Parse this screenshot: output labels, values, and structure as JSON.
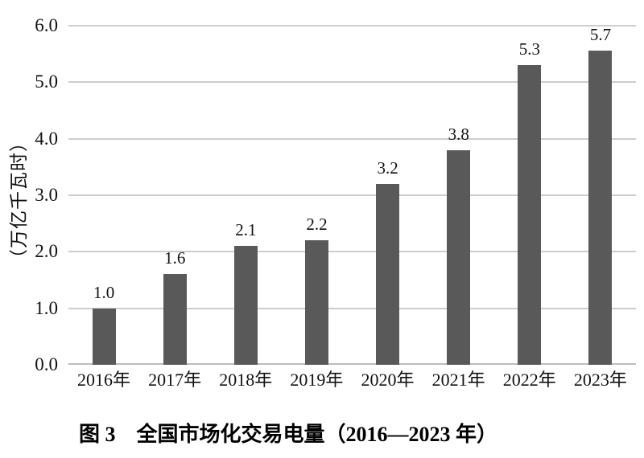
{
  "figure": {
    "caption": "图 3　全国市场化交易电量（2016—2023 年）"
  },
  "chart_data": {
    "type": "bar",
    "title": "图 3　全国市场化交易电量（2016—2023 年）",
    "categories": [
      "2016年",
      "2017年",
      "2018年",
      "2019年",
      "2020年",
      "2021年",
      "2022年",
      "2023年"
    ],
    "values": [
      1.0,
      1.6,
      2.1,
      2.2,
      3.2,
      3.8,
      5.3,
      5.7
    ],
    "value_labels": [
      "1.0",
      "1.6",
      "2.1",
      "2.2",
      "3.2",
      "3.8",
      "5.3",
      "5.7"
    ],
    "xlabel": "",
    "ylabel": "（万亿千瓦时）",
    "ylim": [
      0,
      6
    ],
    "yticks": [
      "0.0",
      "1.0",
      "2.0",
      "3.0",
      "4.0",
      "5.0",
      "6.0"
    ],
    "grid": "horizontal-on",
    "legend": "none",
    "colors": {
      "bar": "#595959",
      "gridline": "#cdcdcd",
      "axis_line": "#bdbdbd",
      "text": "#111111"
    }
  }
}
